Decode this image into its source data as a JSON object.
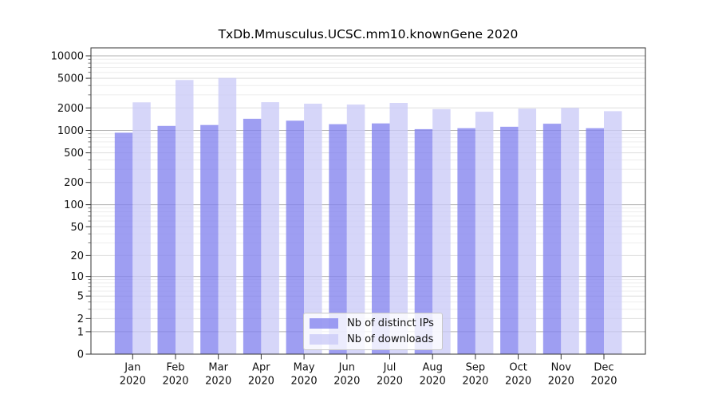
{
  "page": {
    "background": "#ffffff"
  },
  "chart_data": {
    "type": "bar",
    "title": "TxDb.Mmusculus.UCSC.mm10.knownGene 2020",
    "categories": [
      "Jan",
      "Feb",
      "Mar",
      "Apr",
      "May",
      "Jun",
      "Jul",
      "Aug",
      "Sep",
      "Oct",
      "Nov",
      "Dec"
    ],
    "x_year": "2020",
    "series": [
      {
        "name": "Nb of distinct IPs",
        "color": "#8383ee",
        "values": [
          930,
          1150,
          1180,
          1430,
          1350,
          1210,
          1240,
          1040,
          1070,
          1120,
          1230,
          1070
        ]
      },
      {
        "name": "Nb of downloads",
        "color": "#cbcbf7",
        "values": [
          2380,
          4740,
          5050,
          2390,
          2280,
          2220,
          2340,
          1930,
          1780,
          1960,
          2000,
          1810
        ]
      }
    ],
    "xlabel": "",
    "ylabel": "",
    "yscale": "log10(value+1)",
    "yticks": [
      0,
      1,
      2,
      5,
      10,
      20,
      50,
      100,
      200,
      500,
      1000,
      2000,
      5000,
      10000
    ],
    "ylim": [
      0,
      12800
    ],
    "grid": "on",
    "legend_position": "lower center",
    "colors": {
      "decade_gridline": "#b2b2b2",
      "labeled_gridline": "#dddddd",
      "minor_gridline": "#ededed",
      "frame": "#333333"
    }
  }
}
